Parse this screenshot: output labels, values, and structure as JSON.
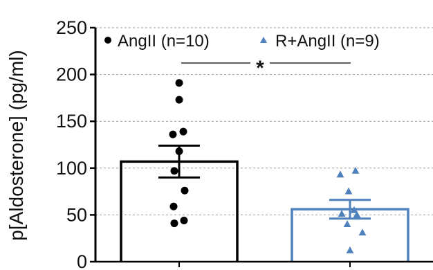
{
  "chart_data": {
    "type": "bar",
    "title": "",
    "xlabel": "",
    "ylabel": "p[Aldosterone] (pg/ml)",
    "ylim": [
      0,
      250
    ],
    "yticks": [
      0,
      50,
      100,
      150,
      200,
      250
    ],
    "ytick_labels": [
      "0",
      "50",
      "100",
      "150",
      "200",
      "250"
    ],
    "grid": "horizontal-dashed",
    "legend_placement": "top",
    "categories": [
      "AngII (n=10)",
      "R+AngII (n=9)"
    ],
    "series": [
      {
        "name": "AngII (n=10)",
        "mean": 107,
        "sem": 17,
        "marker": "circle",
        "color": "#000000",
        "points": [
          191,
          173,
          139,
          136,
          118,
          97,
          76,
          59,
          44,
          41
        ]
      },
      {
        "name": "R+AngII (n=9)",
        "mean": 56,
        "sem": 10,
        "marker": "triangle",
        "color": "#4f81bd",
        "points": [
          97,
          93,
          75,
          55,
          51,
          50,
          40,
          31,
          12
        ]
      }
    ],
    "annotation": {
      "text": "*",
      "between": [
        "AngII (n=10)",
        "R+AngII (n=9)"
      ]
    }
  }
}
